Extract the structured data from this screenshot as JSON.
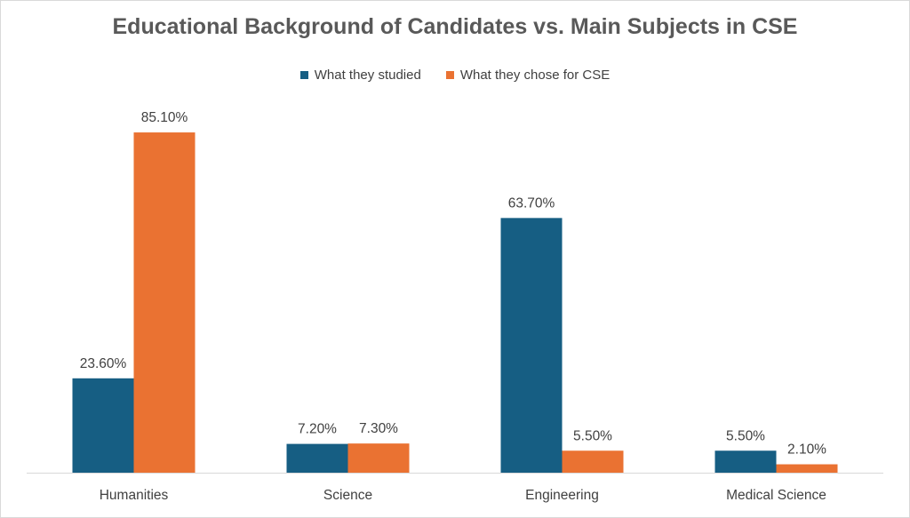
{
  "chart_data": {
    "type": "bar",
    "title": "Educational Background of Candidates vs. Main Subjects in CSE",
    "categories": [
      "Humanities",
      "Science",
      "Engineering",
      "Medical Science"
    ],
    "series": [
      {
        "name": "What they studied",
        "color": "#165e83",
        "values": [
          23.6,
          7.2,
          63.7,
          5.5
        ],
        "labels": [
          "23.60%",
          "7.20%",
          "63.70%",
          "5.50%"
        ]
      },
      {
        "name": "What they chose for CSE",
        "color": "#ea7232",
        "values": [
          85.1,
          7.3,
          5.5,
          2.1
        ],
        "labels": [
          "85.10%",
          "7.30%",
          "5.50%",
          "2.10%"
        ]
      }
    ],
    "ylim": [
      0,
      100
    ],
    "grid": false,
    "legend": "top"
  }
}
